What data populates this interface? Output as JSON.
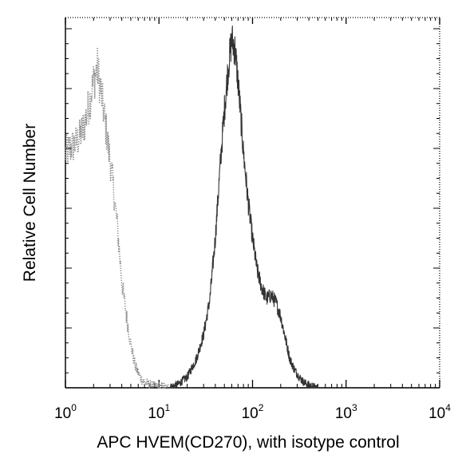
{
  "chart_data": {
    "type": "line",
    "title": "",
    "xlabel": "APC HVEM(CD270), with isotype control",
    "ylabel": "Relative Cell Number",
    "x_scale": "log",
    "xlim": [
      1,
      10000
    ],
    "ylim": [
      0,
      1
    ],
    "grid": false,
    "legend": "none",
    "x_ticks": [
      {
        "base": "10",
        "exp": "0",
        "value": 1
      },
      {
        "base": "10",
        "exp": "1",
        "value": 10
      },
      {
        "base": "10",
        "exp": "2",
        "value": 100
      },
      {
        "base": "10",
        "exp": "3",
        "value": 1000
      },
      {
        "base": "10",
        "exp": "4",
        "value": 10000
      }
    ],
    "series": [
      {
        "style": "dotted",
        "color": "#8a8a8a",
        "x": [
          1,
          1.2,
          1.4,
          1.6,
          1.8,
          2,
          2.2,
          2.5,
          2.8,
          3.2,
          3.6,
          4,
          4.5,
          5,
          5.6,
          6.3,
          7,
          8,
          9,
          10,
          11,
          12.6
        ],
        "y": [
          0.66,
          0.68,
          0.7,
          0.74,
          0.8,
          0.86,
          0.9,
          0.8,
          0.7,
          0.58,
          0.45,
          0.3,
          0.2,
          0.12,
          0.06,
          0.03,
          0.015,
          0.008,
          0.004,
          0.002,
          0.001,
          0.0
        ]
      },
      {
        "style": "solid-noisy",
        "color": "#333333",
        "x": [
          12.6,
          16,
          20,
          25,
          30,
          35,
          40,
          45,
          50,
          55,
          60,
          65,
          70,
          75,
          80,
          90,
          100,
          112,
          126,
          141,
          158,
          178,
          200,
          224,
          251,
          282,
          316,
          355,
          400,
          450,
          500
        ],
        "y": [
          0.0,
          0.01,
          0.03,
          0.08,
          0.15,
          0.25,
          0.42,
          0.62,
          0.78,
          0.9,
          0.98,
          0.95,
          0.86,
          0.76,
          0.66,
          0.52,
          0.42,
          0.33,
          0.28,
          0.25,
          0.26,
          0.24,
          0.2,
          0.14,
          0.08,
          0.05,
          0.03,
          0.015,
          0.008,
          0.003,
          0.0
        ]
      }
    ]
  }
}
